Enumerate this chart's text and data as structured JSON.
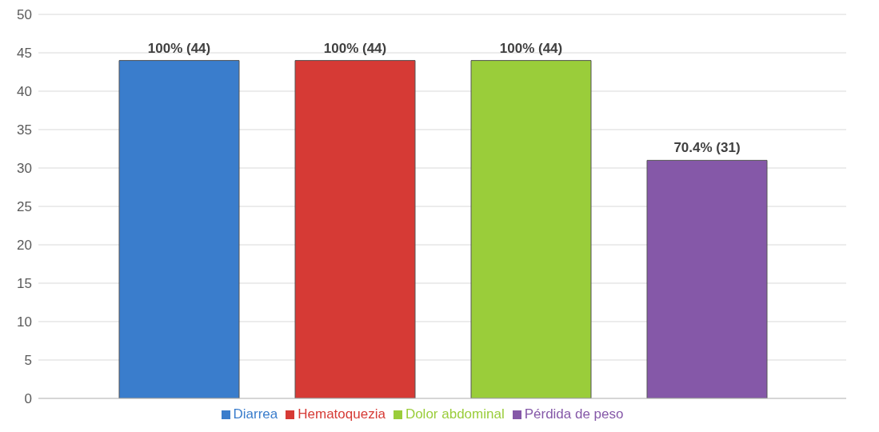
{
  "chart_data": {
    "type": "bar",
    "categories": [
      null
    ],
    "series": [
      {
        "name": "Diarrea",
        "color": "#3a7dcc",
        "values": [
          44
        ],
        "value_labels": [
          "100% (44)"
        ]
      },
      {
        "name": "Hematoquezia",
        "color": "#d63a35",
        "values": [
          44
        ],
        "value_labels": [
          "100% (44)"
        ]
      },
      {
        "name": "Dolor abdominal",
        "color": "#9acd3a",
        "values": [
          44
        ],
        "value_labels": [
          "100% (44)"
        ]
      },
      {
        "name": "Pérdida de peso",
        "color": "#8558a8",
        "values": [
          31
        ],
        "value_labels": [
          "70.4% (31)"
        ]
      }
    ],
    "ylim": [
      0,
      50
    ],
    "yticks": [
      0,
      5,
      10,
      15,
      20,
      25,
      30,
      35,
      40,
      45,
      50
    ],
    "grid": "y",
    "legend": "bottom"
  }
}
